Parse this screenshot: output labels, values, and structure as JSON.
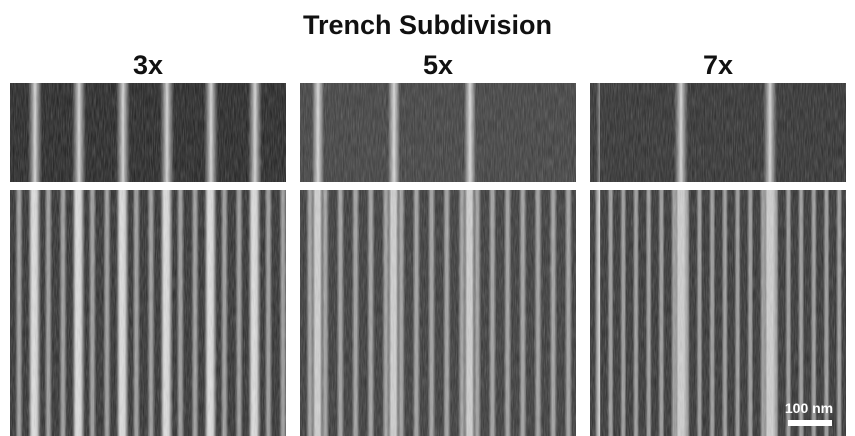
{
  "header": {
    "title": "Trench Subdivision"
  },
  "panels": [
    {
      "label": "3x"
    },
    {
      "label": "5x"
    },
    {
      "label": "7x"
    }
  ],
  "scale_bar": {
    "label": "100 nm"
  }
}
